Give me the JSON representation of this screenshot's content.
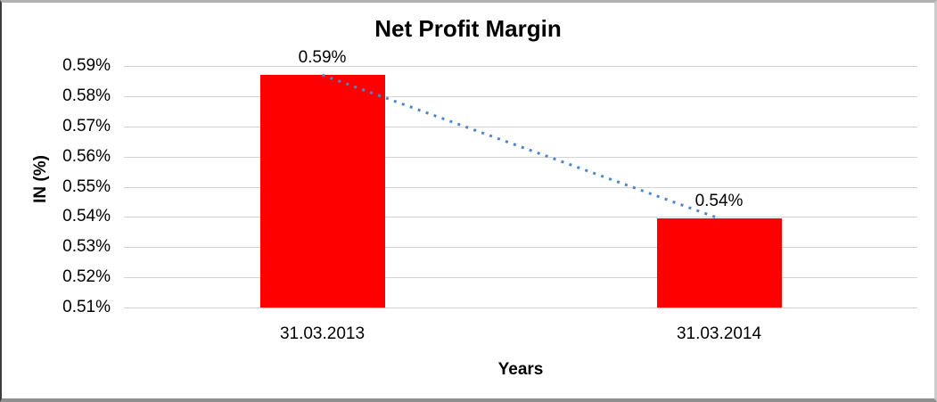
{
  "chart_data": {
    "type": "bar",
    "title": "Net Profit Margin",
    "xlabel": "Years",
    "ylabel": "IN (%)",
    "categories": [
      "31.03.2013",
      "31.03.2014"
    ],
    "values": [
      0.587,
      0.5395
    ],
    "data_labels": [
      "0.59%",
      "0.54%"
    ],
    "y_ticks": [
      "0.59%",
      "0.58%",
      "0.57%",
      "0.56%",
      "0.55%",
      "0.54%",
      "0.53%",
      "0.52%",
      "0.51%"
    ],
    "y_tick_values": [
      0.59,
      0.58,
      0.57,
      0.56,
      0.55,
      0.54,
      0.53,
      0.52,
      0.51
    ],
    "ylim": [
      0.51,
      0.59
    ],
    "grid": true,
    "legend": false,
    "bar_color": "#ff0000",
    "trendline": {
      "style": "dotted",
      "color": "#4e86c8",
      "from_value": 0.587,
      "to_value": 0.5395
    },
    "gridline_color": "#d3d3d3",
    "text_color": "#000000"
  }
}
